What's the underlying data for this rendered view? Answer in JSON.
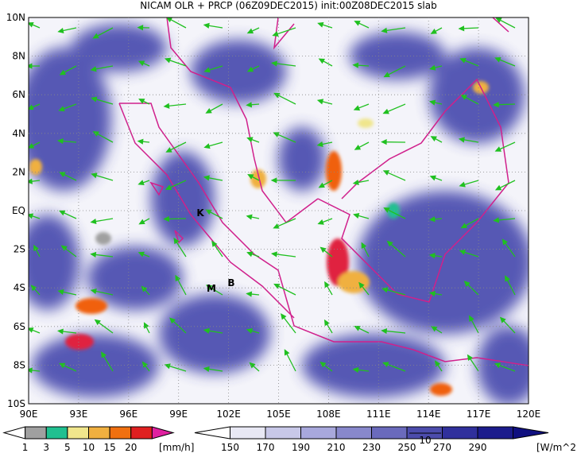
{
  "title": "NICAM OLR + PRCP (06Z09DEC2015) init:00Z08DEC2015 slab",
  "map": {
    "lat_labels": [
      "10N",
      "8N",
      "6N",
      "4N",
      "2N",
      "EQ",
      "2S",
      "4S",
      "6S",
      "8S",
      "10S"
    ],
    "lon_labels": [
      "90E",
      "93E",
      "96E",
      "99E",
      "102E",
      "105E",
      "108E",
      "111E",
      "114E",
      "117E",
      "120E"
    ],
    "markers": [
      "K",
      "M",
      "B"
    ],
    "vector_reference": "10"
  },
  "legend_precip": {
    "labels": [
      "1",
      "3",
      "5",
      "10",
      "15",
      "20"
    ],
    "unit": "[mm/h]"
  },
  "legend_olr": {
    "labels": [
      "150",
      "170",
      "190",
      "210",
      "230",
      "250",
      "270",
      "290"
    ],
    "unit": "[W/m^2]"
  }
}
